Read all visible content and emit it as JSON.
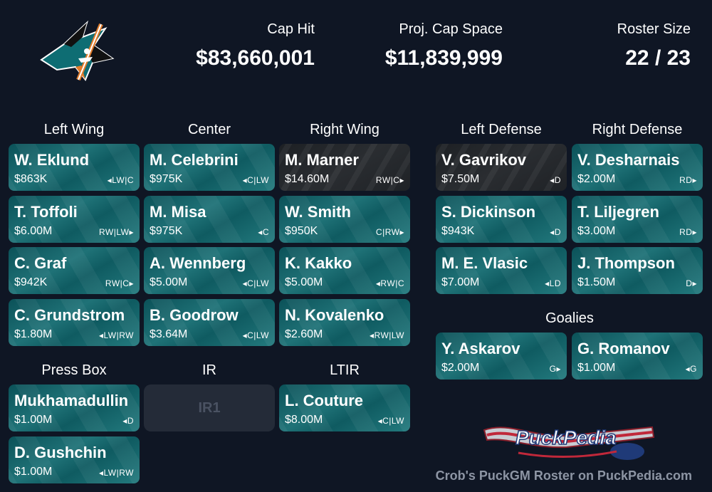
{
  "team": {
    "logo_icon": "sharks-logo-icon"
  },
  "stats": {
    "cap_hit": {
      "label": "Cap Hit",
      "value": "$83,660,001"
    },
    "cap_space": {
      "label": "Proj. Cap Space",
      "value": "$11,839,999"
    },
    "roster_size": {
      "label": "Roster Size",
      "value": "22 / 23"
    }
  },
  "headers": {
    "left_wing": "Left Wing",
    "center": "Center",
    "right_wing": "Right Wing",
    "left_defense": "Left Defense",
    "right_defense": "Right Defense",
    "goalies": "Goalies",
    "press_box": "Press Box",
    "ir": "IR",
    "ltir": "LTIR"
  },
  "left_wing": [
    {
      "name": "W. Eklund",
      "cap": "$863K",
      "pos": "◂LW|C"
    },
    {
      "name": "T. Toffoli",
      "cap": "$6.00M",
      "pos": "RW|LW▸"
    },
    {
      "name": "C. Graf",
      "cap": "$942K",
      "pos": "RW|C▸"
    },
    {
      "name": "C. Grundstrom",
      "cap": "$1.80M",
      "pos": "◂LW|RW"
    }
  ],
  "center": [
    {
      "name": "M. Celebrini",
      "cap": "$975K",
      "pos": "◂C|LW"
    },
    {
      "name": "M. Misa",
      "cap": "$975K",
      "pos": "◂C"
    },
    {
      "name": "A. Wennberg",
      "cap": "$5.00M",
      "pos": "◂C|LW"
    },
    {
      "name": "B. Goodrow",
      "cap": "$3.64M",
      "pos": "◂C|LW"
    }
  ],
  "right_wing": [
    {
      "name": "M. Marner",
      "cap": "$14.60M",
      "pos": "RW|C▸",
      "dark": true
    },
    {
      "name": "W. Smith",
      "cap": "$950K",
      "pos": "C|RW▸"
    },
    {
      "name": "K. Kakko",
      "cap": "$5.00M",
      "pos": "◂RW|C"
    },
    {
      "name": "N. Kovalenko",
      "cap": "$2.60M",
      "pos": "◂RW|LW"
    }
  ],
  "left_defense": [
    {
      "name": "V. Gavrikov",
      "cap": "$7.50M",
      "pos": "◂D",
      "dark": true
    },
    {
      "name": "S. Dickinson",
      "cap": "$943K",
      "pos": "◂D"
    },
    {
      "name": "M. E. Vlasic",
      "cap": "$7.00M",
      "pos": "◂LD"
    }
  ],
  "right_defense": [
    {
      "name": "V. Desharnais",
      "cap": "$2.00M",
      "pos": "RD▸"
    },
    {
      "name": "T. Liljegren",
      "cap": "$3.00M",
      "pos": "RD▸"
    },
    {
      "name": "J. Thompson",
      "cap": "$1.50M",
      "pos": "D▸"
    }
  ],
  "goalies": [
    {
      "name": "Y. Askarov",
      "cap": "$2.00M",
      "pos": "G▸"
    },
    {
      "name": "G. Romanov",
      "cap": "$1.00M",
      "pos": "◂G"
    }
  ],
  "press_box": [
    {
      "name": "Mukhamadullin",
      "cap": "$1.00M",
      "pos": "◂D"
    },
    {
      "name": "D. Gushchin",
      "cap": "$1.00M",
      "pos": "◂LW|RW"
    }
  ],
  "ir_slot": "IR1",
  "ltir": [
    {
      "name": "L. Couture",
      "cap": "$8.00M",
      "pos": "◂C|LW"
    }
  ],
  "branding": {
    "logo_text": "PuckPedia",
    "footer": "Crob's PuckGM Roster on PuckPedia.com"
  }
}
